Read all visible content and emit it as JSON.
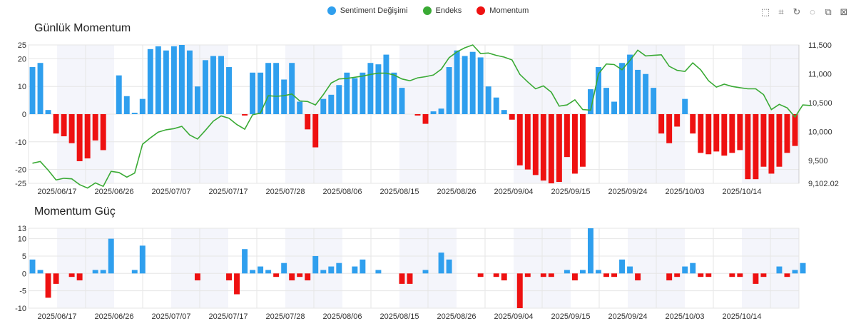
{
  "legend": {
    "sentiment": {
      "label": "Sentiment Değişimi",
      "color": "#2f9fee"
    },
    "endeks": {
      "label": "Endeks",
      "color": "#3aaa35"
    },
    "momentum": {
      "label": "Momentum",
      "color": "#ee1111"
    }
  },
  "toolbox": [
    {
      "icon": "zoom-icon",
      "glyph": "⬚"
    },
    {
      "icon": "lasso-icon",
      "glyph": "⌗"
    },
    {
      "icon": "restore-icon",
      "glyph": "↻"
    },
    {
      "icon": "rect-select-icon",
      "glyph": "◌"
    },
    {
      "icon": "save-image-icon",
      "glyph": "⧉"
    },
    {
      "icon": "clear-icon",
      "glyph": "⊠"
    }
  ],
  "chart_data": [
    {
      "type": "bar+line",
      "title": "Günlük Momentum",
      "x_labels": [
        "2025/06/17",
        "2025/06/26",
        "2025/07/07",
        "2025/07/17",
        "2025/07/28",
        "2025/08/06",
        "2025/08/15",
        "2025/08/26",
        "2025/09/04",
        "2025/09/15",
        "2025/09/24",
        "2025/10/03",
        "2025/10/14"
      ],
      "y_left_ticks": [
        "25",
        "20",
        "10",
        "0",
        "-10",
        "-20",
        "-25"
      ],
      "y_left_range": [
        -25,
        25
      ],
      "y_right_ticks": [
        "11,500",
        "11,000",
        "10,500",
        "10,000",
        "9,500",
        "9,102.02"
      ],
      "y_right_range": [
        9102.02,
        11500
      ],
      "bars": [
        17,
        18.5,
        1.5,
        -7,
        -8,
        -10.5,
        -17,
        -16,
        -9.5,
        -13,
        0,
        14,
        6.5,
        0.5,
        5.5,
        23.5,
        24.5,
        23,
        24.5,
        25,
        23,
        10,
        19.5,
        21,
        21,
        17,
        0,
        -0.5,
        15,
        15,
        18.5,
        18.5,
        12.5,
        18.5,
        4.5,
        -5.5,
        -12,
        5.5,
        7,
        10.5,
        15,
        13,
        15,
        18.5,
        18,
        21.5,
        15,
        9.5,
        0,
        -0.5,
        -3.5,
        1,
        2,
        17,
        23,
        21,
        22.5,
        20.5,
        10,
        6,
        1.5,
        -2,
        -18.5,
        -20,
        -22,
        -24,
        -25,
        -24.5,
        -15.5,
        -21.5,
        -19,
        9,
        17,
        9.5,
        4.5,
        18.5,
        21.5,
        16,
        14.5,
        9.5,
        -7,
        -10.5,
        -4.5,
        5.5,
        -7,
        -14,
        -14.5,
        -13.5,
        -15,
        -14,
        -13,
        -23.5,
        -23.5,
        -19,
        -21.5,
        -19,
        -14,
        -11.5
      ],
      "endeks": [
        9450,
        9480,
        9330,
        9160,
        9190,
        9180,
        9080,
        9020,
        9110,
        9050,
        9310,
        9290,
        9210,
        9280,
        9780,
        9890,
        9990,
        10030,
        10050,
        10090,
        9940,
        9870,
        10020,
        10180,
        10270,
        10230,
        10120,
        10040,
        10290,
        10320,
        10620,
        10610,
        10620,
        10650,
        10530,
        10520,
        10460,
        10640,
        10840,
        10910,
        10920,
        10940,
        10960,
        10990,
        11010,
        11010,
        10980,
        10910,
        10880,
        10930,
        10950,
        10980,
        11080,
        11280,
        11380,
        11450,
        11500,
        11350,
        11360,
        11320,
        11290,
        11240,
        10990,
        10860,
        10740,
        10790,
        10680,
        10440,
        10460,
        10550,
        10380,
        10370,
        11000,
        11170,
        11160,
        11070,
        11230,
        11410,
        11310,
        11320,
        11330,
        11130,
        11060,
        11040,
        11190,
        11070,
        10880,
        10770,
        10820,
        10780,
        10760,
        10740,
        10740,
        10640,
        10380,
        10470,
        10410,
        10250,
        10460,
        10450
      ]
    },
    {
      "type": "bar",
      "title": "Momentum Güç",
      "x_labels": [
        "2025/06/17",
        "2025/06/26",
        "2025/07/07",
        "2025/07/17",
        "2025/07/28",
        "2025/08/06",
        "2025/08/15",
        "2025/08/26",
        "2025/09/04",
        "2025/09/15",
        "2025/09/24",
        "2025/10/03",
        "2025/10/14"
      ],
      "y_ticks": [
        "13",
        "10",
        "5",
        "0",
        "-5",
        "-10"
      ],
      "y_range": [
        -10,
        13
      ],
      "values": [
        4,
        1,
        -7,
        -3,
        0,
        -1,
        -2,
        0,
        1,
        1,
        10,
        0,
        0,
        1,
        8,
        0,
        0,
        0,
        0,
        0,
        0,
        -2,
        0,
        0,
        0,
        -2,
        -6,
        7,
        1,
        2,
        1,
        -1,
        3,
        -2,
        -1,
        -2,
        5,
        1,
        2,
        3,
        0,
        2,
        4,
        0,
        1,
        0,
        0,
        -3,
        -3,
        0,
        1,
        0,
        6,
        4,
        0,
        0,
        0,
        -1,
        0,
        -1,
        -2,
        0,
        -10,
        -1,
        0,
        -1,
        -1,
        0,
        1,
        -2,
        1,
        13,
        1,
        -1,
        -1,
        4,
        2,
        -2,
        0,
        0,
        0,
        -2,
        -1,
        2,
        3,
        -1,
        -1,
        0,
        0,
        -1,
        -1,
        0,
        -3,
        -1,
        0,
        2,
        -1,
        1,
        3
      ]
    }
  ]
}
